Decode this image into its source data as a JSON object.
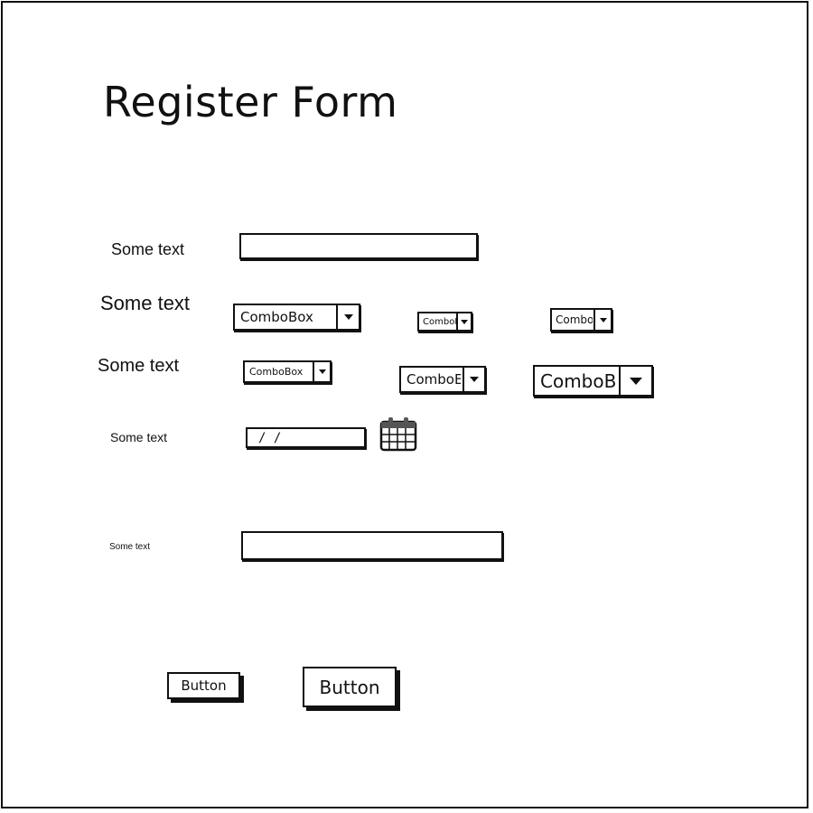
{
  "form": {
    "title": "Register Form",
    "labels": [
      "Some text",
      "Some text",
      "Some text",
      "Some text",
      "Some text"
    ],
    "combo_label": "ComboBox",
    "combo_truncated": [
      "ComboE",
      "ComboB",
      "ComboE",
      "ComboB"
    ],
    "date_value": "/ /",
    "button_small_label": "Button",
    "button_large_label": "Button"
  },
  "icons": {
    "calendar": "calendar-icon",
    "dropdown": "chevron-down-icon"
  }
}
